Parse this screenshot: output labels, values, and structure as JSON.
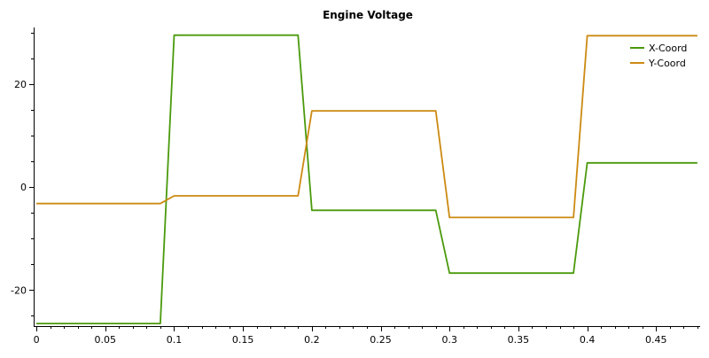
{
  "chart_data": {
    "type": "line",
    "title": "Engine Voltage",
    "xlabel": "",
    "ylabel": "",
    "xlim": [
      -0.002,
      0.482
    ],
    "ylim": [
      -27,
      31
    ],
    "x_ticks": [
      0,
      0.05,
      0.1,
      0.15,
      0.2,
      0.25,
      0.3,
      0.35,
      0.4,
      0.45
    ],
    "x_tick_labels": [
      "0",
      "0.05",
      "0.1",
      "0.15",
      "0.2",
      "0.25",
      "0.3",
      "0.35",
      "0.4",
      "0.45"
    ],
    "y_ticks": [
      -20,
      0,
      20
    ],
    "y_tick_labels": [
      "-20",
      "0",
      "20"
    ],
    "grid": false,
    "legend_position": "top-right",
    "series": [
      {
        "name": "X-Coord",
        "color": "#4a9a0c",
        "x": [
          0,
          0.09,
          0.1,
          0.19,
          0.2,
          0.29,
          0.3,
          0.39,
          0.4,
          0.48
        ],
        "y": [
          -26.5,
          -26.5,
          29.5,
          29.5,
          -4.5,
          -4.5,
          -16.7,
          -16.7,
          4.7,
          4.7
        ]
      },
      {
        "name": "Y-Coord",
        "color": "#cc8a12",
        "x": [
          0,
          0.09,
          0.1,
          0.19,
          0.2,
          0.29,
          0.3,
          0.39,
          0.4,
          0.48
        ],
        "y": [
          -3.2,
          -3.2,
          -1.7,
          -1.7,
          14.8,
          14.8,
          -5.9,
          -5.9,
          29.4,
          29.4
        ]
      }
    ]
  }
}
